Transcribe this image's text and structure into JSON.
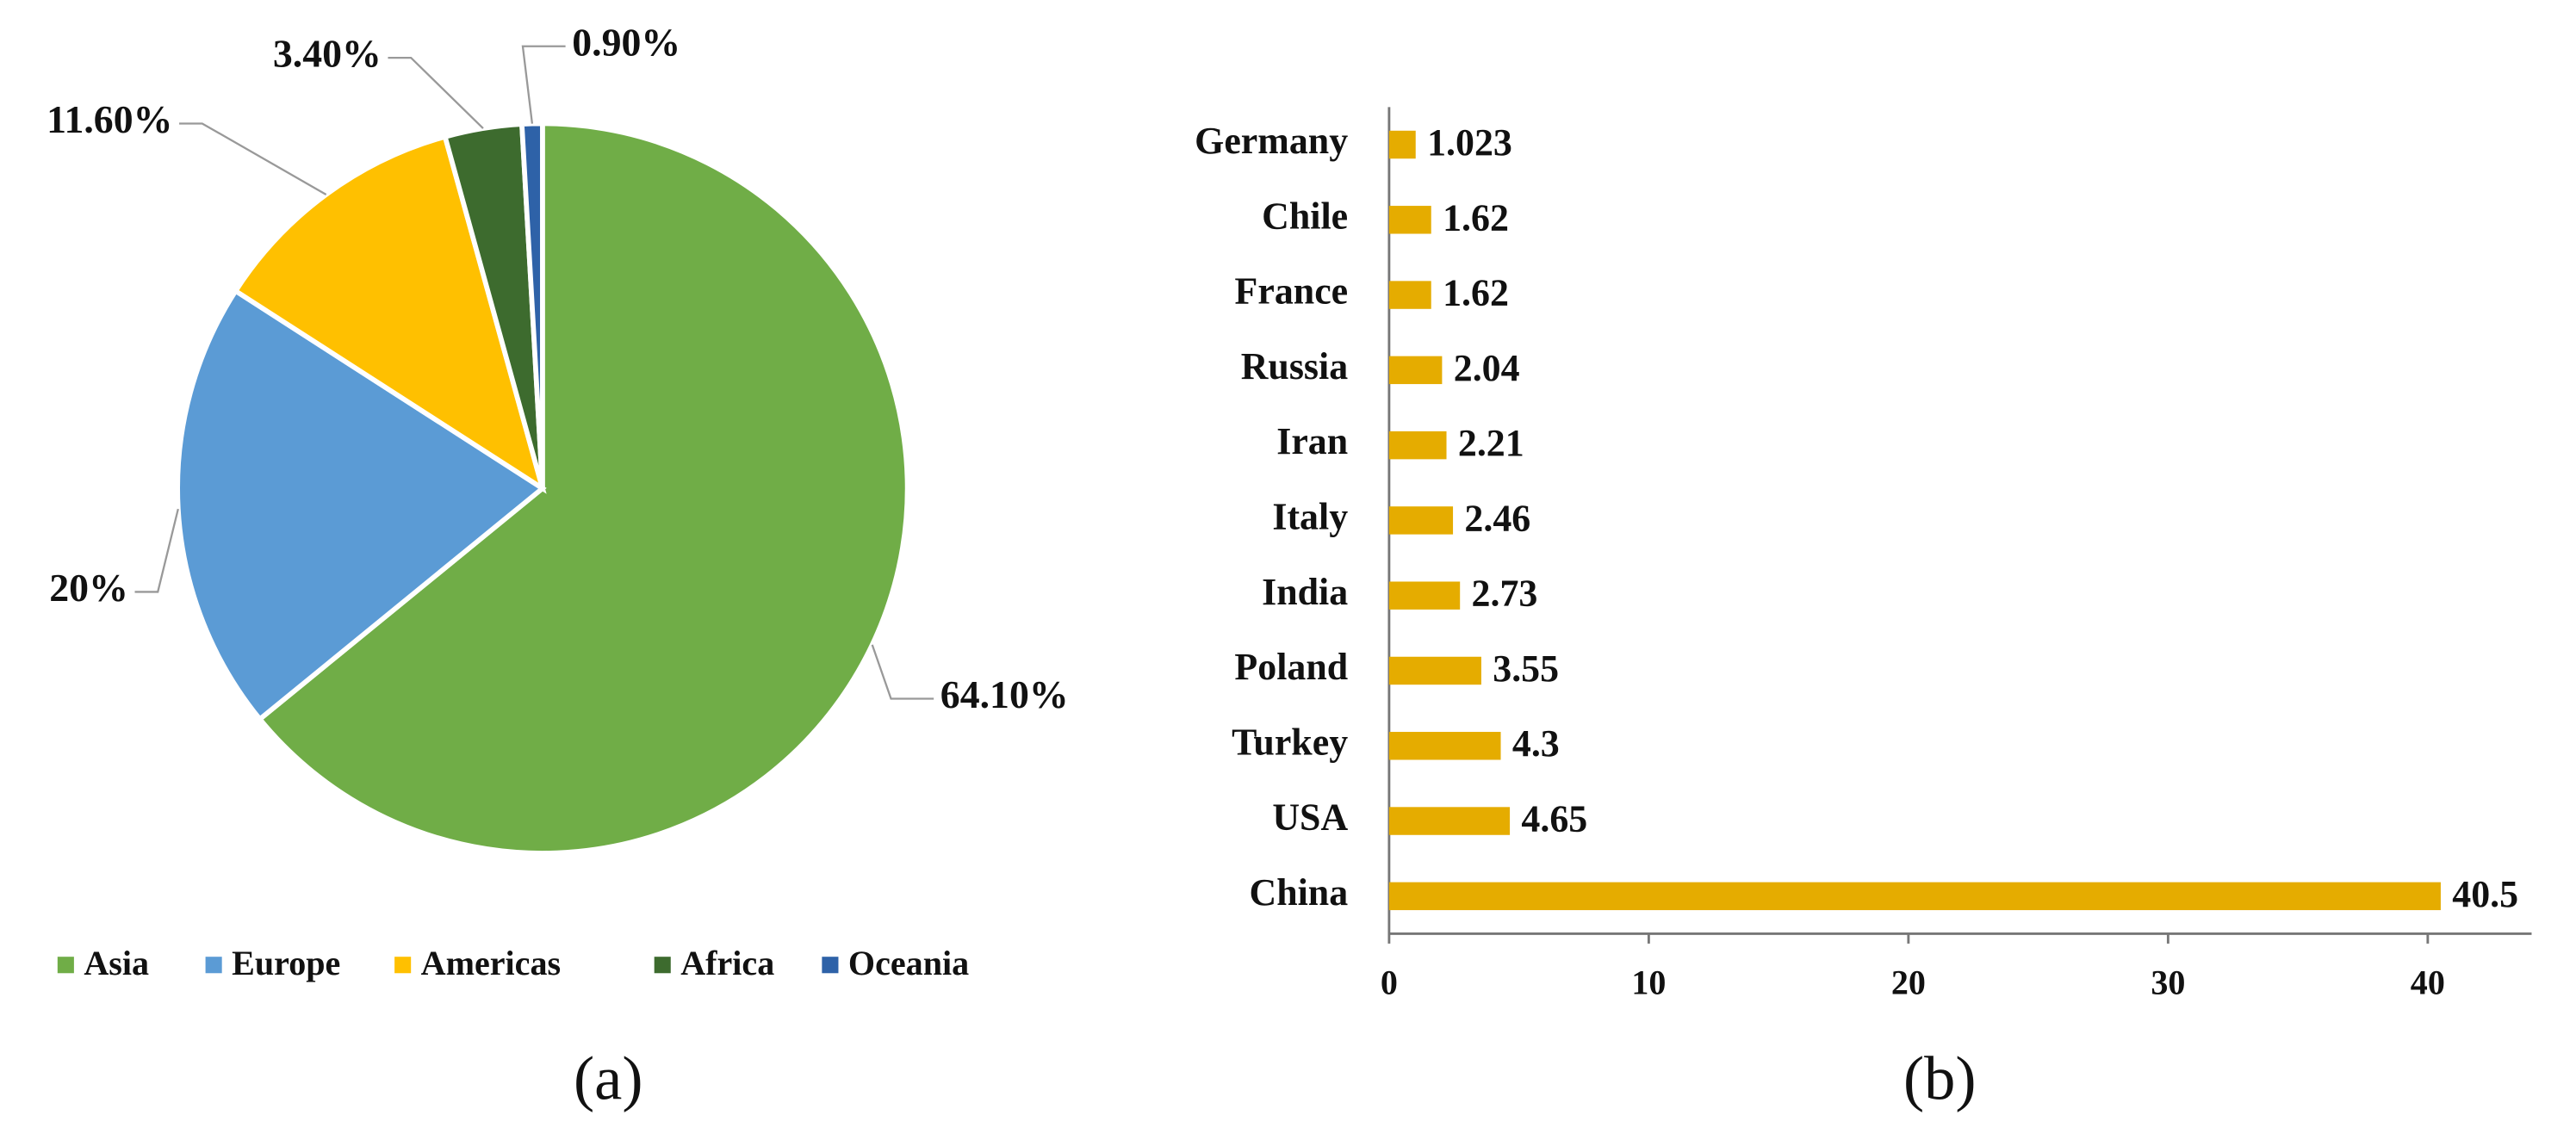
{
  "chart_data": [
    {
      "type": "pie",
      "caption": "(a)",
      "categories": [
        "Asia",
        "Europe",
        "Americas",
        "Africa",
        "Oceania"
      ],
      "values": [
        64.1,
        20,
        11.6,
        3.4,
        0.9
      ],
      "value_labels": [
        "64.10%",
        "20%",
        "11.60%",
        "3.40%",
        "0.90%"
      ],
      "colors": [
        "#70ad47",
        "#5b9bd5",
        "#ffc000",
        "#3d6b2e",
        "#2e62a8"
      ],
      "legend": "bottom"
    },
    {
      "type": "hbar",
      "caption": "(b)",
      "categories": [
        "China",
        "USA",
        "Turkey",
        "Poland",
        "India",
        "Italy",
        "Iran",
        "Russia",
        "France",
        "Chile",
        "Germany"
      ],
      "values": [
        40.5,
        4.65,
        4.3,
        3.55,
        2.73,
        2.46,
        2.21,
        2.04,
        1.62,
        1.62,
        1.023
      ],
      "color": "#e5ac00",
      "xlim": [
        0,
        44
      ],
      "xticks": [
        0,
        10,
        20,
        30,
        40
      ]
    }
  ]
}
